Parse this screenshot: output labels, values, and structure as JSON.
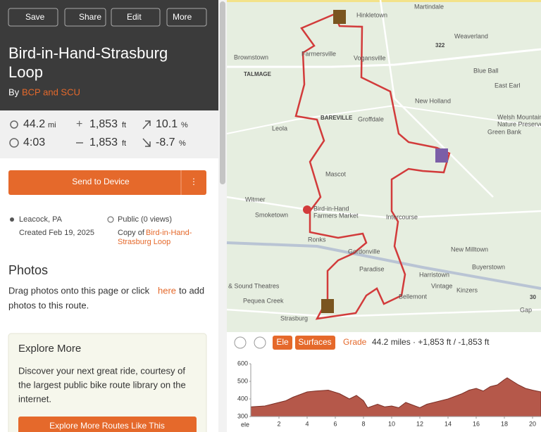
{
  "header": {
    "buttons": [
      "Save",
      "Share",
      "Edit",
      "More"
    ],
    "title_lines": [
      "Bird-in-Hand-Strasburg",
      "Loop"
    ],
    "by": "By",
    "author": "BCP and SCU"
  },
  "stats": {
    "distance": 44.2,
    "distance_unit": "mi",
    "gain": "1,853",
    "gain_unit": "ft",
    "max_grade": 10.1,
    "grade_unit": "%",
    "time": "4:03",
    "loss": "1,853",
    "loss_unit": "ft",
    "min_grade": -8.7,
    "min_grade_unit": "%"
  },
  "send_button": "Send to Device",
  "details": {
    "location": "Leacock, PA",
    "visibility": "Public (0 views)",
    "created": "Created Feb 19, 2025",
    "copy_of": "Copy of",
    "copy_link_lines": [
      "Bird-in-Hand-",
      "Strasburg Loop"
    ]
  },
  "photos": {
    "heading": "Photos",
    "line1": "Drag photos onto this page or click",
    "link": "here",
    "line1_end": "to add",
    "line2": "photos to this route."
  },
  "explore": {
    "heading": "Explore More",
    "body_lines": [
      "Discover your next great ride, courtesy of",
      "the largest public bike route library on the",
      "internet."
    ],
    "button": "Explore More Routes Like This"
  },
  "map": {
    "labels": [
      "Martindale",
      "Hinkletown",
      "Weaverland",
      "Brownstown",
      "Farmersville",
      "Vogansville",
      "Blue Ball",
      "TALMAGE",
      "East Earl",
      "New Holland",
      "BAREVILLE",
      "Groffdale",
      "Welsh Mountain",
      "Nature Preserve",
      "Leola",
      "Green Bank",
      "Mascot",
      "Witmer",
      "Smoketown",
      "Bird-in-Hand",
      "Farmers Market",
      "Intercourse",
      "Ronks",
      "Gordonville",
      "New Milltown",
      "Paradise",
      "Harristown",
      "Buyerstown",
      "Vintage",
      "Kinzers",
      "& Sound Theatres",
      "Pequea Creek",
      "Strasburg",
      "Bellemont",
      "Gap",
      "322",
      "30"
    ]
  },
  "elevation_toolbar": {
    "tabs": [
      "Ele",
      "Surfaces",
      "Grade"
    ],
    "summary": "44.2 miles · +1,853 ft / -1,853 ft"
  },
  "chart_data": {
    "type": "area",
    "ylabel": "ele",
    "color": "#b5584a",
    "x": [
      0,
      1,
      1.5,
      2.5,
      3,
      4,
      4.6,
      5.5,
      6.3,
      7,
      7.5,
      8,
      8.3,
      9,
      9.5,
      10,
      10.5,
      11,
      11.5,
      12,
      12.5,
      13,
      14,
      15,
      15.5,
      16,
      16.5,
      17,
      17.5,
      18,
      18.2,
      18.6,
      19,
      19.5,
      20,
      20.6
    ],
    "values": [
      355,
      360,
      370,
      390,
      410,
      440,
      445,
      450,
      430,
      400,
      420,
      390,
      350,
      370,
      355,
      360,
      350,
      380,
      365,
      350,
      370,
      380,
      400,
      430,
      450,
      460,
      445,
      470,
      480,
      510,
      520,
      500,
      480,
      460,
      450,
      440
    ],
    "xlim": [
      0,
      20.6
    ],
    "ylim": [
      300,
      600
    ],
    "xticks": [
      2,
      4,
      6,
      8,
      10,
      12,
      14,
      16,
      18,
      20
    ],
    "yticks": [
      300,
      400,
      500,
      600
    ]
  }
}
